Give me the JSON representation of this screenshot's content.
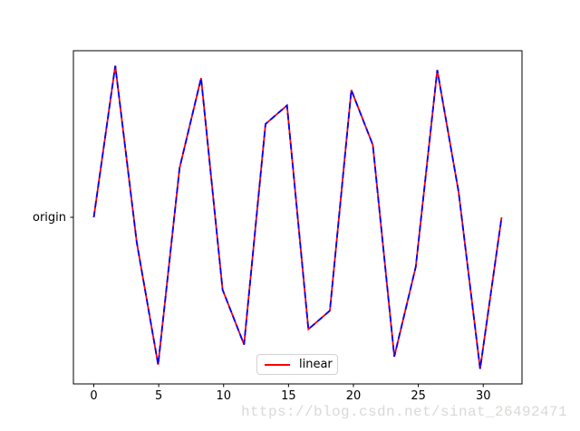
{
  "watermark": {
    "text": "https://blog.csdn.net/sinat_26492471",
    "color": "#d9d9d7"
  },
  "colors": {
    "background": "#ffffff",
    "axis": "#000000",
    "legend_border": "#d2d2d2",
    "tick_text": "#000000"
  },
  "chart_data": {
    "type": "line",
    "title": "",
    "xlabel": "",
    "ylabel": "",
    "x": [
      0.0,
      1.653,
      3.307,
      4.96,
      6.614,
      8.267,
      9.921,
      11.574,
      13.228,
      14.881,
      16.535,
      18.188,
      19.842,
      21.495,
      23.149,
      24.802,
      26.456,
      28.109,
      29.763,
      31.416
    ],
    "y": [
      0.0,
      0.997,
      -0.165,
      -0.969,
      0.325,
      0.916,
      -0.476,
      -0.837,
      0.614,
      0.736,
      -0.736,
      -0.614,
      0.837,
      0.476,
      -0.916,
      -0.325,
      0.969,
      0.165,
      -0.997,
      0.0
    ],
    "series": [
      {
        "name": "linear",
        "color": "#ff0000",
        "line_style": "solid",
        "in_legend": true
      },
      {
        "name": "origin",
        "color": "#0000ff",
        "line_style": "dashed",
        "in_legend": false
      }
    ],
    "xticks": [
      "0",
      "5",
      "10",
      "15",
      "20",
      "25",
      "30"
    ],
    "xtick_values": [
      0,
      5,
      10,
      15,
      20,
      25,
      30
    ],
    "yticks": [
      {
        "value": 0,
        "label": "origin"
      }
    ],
    "xlim": [
      -1.571,
      32.987
    ],
    "ylim": [
      -1.096,
      1.096
    ],
    "grid": false,
    "legend": {
      "label": "linear",
      "color": "#ff0000",
      "position": "lower center"
    }
  }
}
